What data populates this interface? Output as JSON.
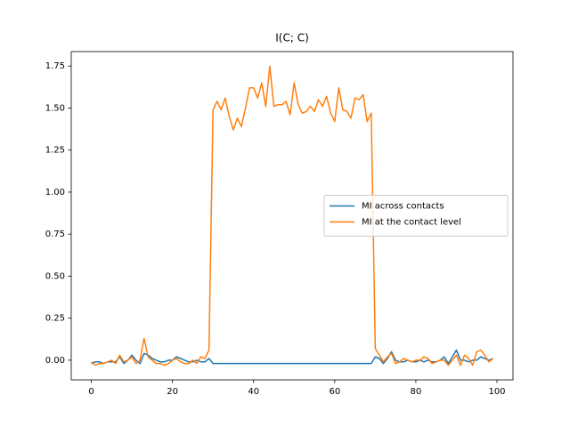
{
  "chart_data": {
    "type": "line",
    "title": "I(C; C)",
    "x": [
      0,
      1,
      2,
      3,
      4,
      5,
      6,
      7,
      8,
      9,
      10,
      11,
      12,
      13,
      14,
      15,
      16,
      17,
      18,
      19,
      20,
      21,
      22,
      23,
      24,
      25,
      26,
      27,
      28,
      29,
      30,
      31,
      32,
      33,
      34,
      35,
      36,
      37,
      38,
      39,
      40,
      41,
      42,
      43,
      44,
      45,
      46,
      47,
      48,
      49,
      50,
      51,
      52,
      53,
      54,
      55,
      56,
      57,
      58,
      59,
      60,
      61,
      62,
      63,
      64,
      65,
      66,
      67,
      68,
      69,
      70,
      71,
      72,
      73,
      74,
      75,
      76,
      77,
      78,
      79,
      80,
      81,
      82,
      83,
      84,
      85,
      86,
      87,
      88,
      89,
      90,
      91,
      92,
      93,
      94,
      95,
      96,
      97,
      98,
      99
    ],
    "series": [
      {
        "name": "MI across contacts",
        "color": "#1f77b4",
        "values": [
          -0.02,
          -0.01,
          -0.01,
          -0.02,
          -0.01,
          -0.01,
          -0.01,
          0.02,
          -0.02,
          0.0,
          0.03,
          0.0,
          -0.02,
          0.04,
          0.03,
          0.01,
          0.0,
          -0.01,
          -0.01,
          0.0,
          0.0,
          0.02,
          0.01,
          0.0,
          -0.01,
          -0.01,
          0.0,
          -0.01,
          -0.01,
          0.01,
          -0.02,
          -0.02,
          -0.02,
          -0.02,
          -0.02,
          -0.02,
          -0.02,
          -0.02,
          -0.02,
          -0.02,
          -0.02,
          -0.02,
          -0.02,
          -0.02,
          -0.02,
          -0.02,
          -0.02,
          -0.02,
          -0.02,
          -0.02,
          -0.02,
          -0.02,
          -0.02,
          -0.02,
          -0.02,
          -0.02,
          -0.02,
          -0.02,
          -0.02,
          -0.02,
          -0.02,
          -0.02,
          -0.02,
          -0.02,
          -0.02,
          -0.02,
          -0.02,
          -0.02,
          -0.02,
          -0.02,
          0.02,
          0.01,
          -0.02,
          0.01,
          0.05,
          0.0,
          -0.01,
          -0.01,
          0.0,
          -0.01,
          -0.01,
          0.0,
          -0.01,
          0.0,
          -0.01,
          -0.01,
          0.0,
          0.02,
          -0.02,
          0.02,
          0.06,
          0.0,
          0.0,
          -0.01,
          0.0,
          0.0,
          0.02,
          0.01,
          0.0,
          0.01
        ]
      },
      {
        "name": "MI at the contact level",
        "color": "#ff7f0e",
        "values": [
          -0.01,
          -0.03,
          -0.02,
          -0.02,
          -0.01,
          0.0,
          -0.02,
          0.03,
          -0.01,
          0.0,
          0.02,
          -0.02,
          0.0,
          0.13,
          0.02,
          0.0,
          -0.02,
          -0.02,
          -0.03,
          -0.02,
          0.0,
          0.01,
          -0.01,
          -0.02,
          -0.02,
          0.0,
          -0.02,
          0.02,
          0.01,
          0.06,
          1.49,
          1.54,
          1.49,
          1.56,
          1.45,
          1.37,
          1.44,
          1.39,
          1.5,
          1.62,
          1.62,
          1.56,
          1.65,
          1.51,
          1.75,
          1.51,
          1.52,
          1.52,
          1.54,
          1.46,
          1.65,
          1.52,
          1.47,
          1.48,
          1.51,
          1.48,
          1.55,
          1.51,
          1.57,
          1.47,
          1.42,
          1.62,
          1.49,
          1.48,
          1.44,
          1.56,
          1.55,
          1.58,
          1.42,
          1.47,
          0.07,
          0.03,
          -0.01,
          0.02,
          0.04,
          -0.02,
          -0.01,
          0.01,
          0.0,
          -0.01,
          0.0,
          0.0,
          0.02,
          0.01,
          -0.02,
          -0.01,
          0.0,
          0.0,
          -0.03,
          0.0,
          0.03,
          -0.03,
          0.03,
          0.01,
          -0.03,
          0.05,
          0.06,
          0.03,
          -0.01,
          0.01
        ]
      }
    ],
    "xlim": [
      -4.95,
      103.95
    ],
    "ylim": [
      -0.117,
      1.836
    ],
    "xticks": [
      0,
      20,
      40,
      60,
      80,
      100
    ],
    "yticks": [
      {
        "value": 0,
        "label": "0.00"
      },
      {
        "value": 0.25,
        "label": "0.25"
      },
      {
        "value": 0.5,
        "label": "0.50"
      },
      {
        "value": 0.75,
        "label": "0.75"
      },
      {
        "value": 1,
        "label": "1.00"
      },
      {
        "value": 1.25,
        "label": "1.25"
      },
      {
        "value": 1.5,
        "label": "1.50"
      },
      {
        "value": 1.75,
        "label": "1.75"
      }
    ],
    "grid": false,
    "legend": "center right"
  }
}
